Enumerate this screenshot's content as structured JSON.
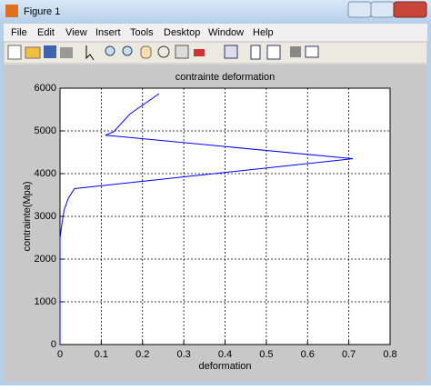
{
  "window": {
    "title": "Figure 1"
  },
  "menu": [
    "File",
    "Edit",
    "View",
    "Insert",
    "Tools",
    "Desktop",
    "Window",
    "Help"
  ],
  "chart_data": {
    "type": "line",
    "title": "contrainte deformation",
    "x_label": "deformation",
    "y_label": "contrainte(Mpa)",
    "series": [
      {
        "color": "#0000ff",
        "x": [
          0,
          0,
          0.005,
          0.01,
          0.02,
          0.035,
          0.71,
          0.11,
          0.13,
          0.17,
          0.24
        ],
        "values": [
          0,
          2500,
          2850,
          3150,
          3420,
          3650,
          4350,
          4900,
          4980,
          5400,
          5870
        ]
      }
    ],
    "xlim": [
      0,
      0.8
    ],
    "xticks": [
      0,
      0.1,
      0.2,
      0.3,
      0.4,
      0.5,
      0.6,
      0.7,
      0.8
    ],
    "ylim": [
      0,
      6000
    ],
    "yticks": [
      0,
      1000,
      2000,
      3000,
      4000,
      5000,
      6000
    ],
    "grid": true
  }
}
